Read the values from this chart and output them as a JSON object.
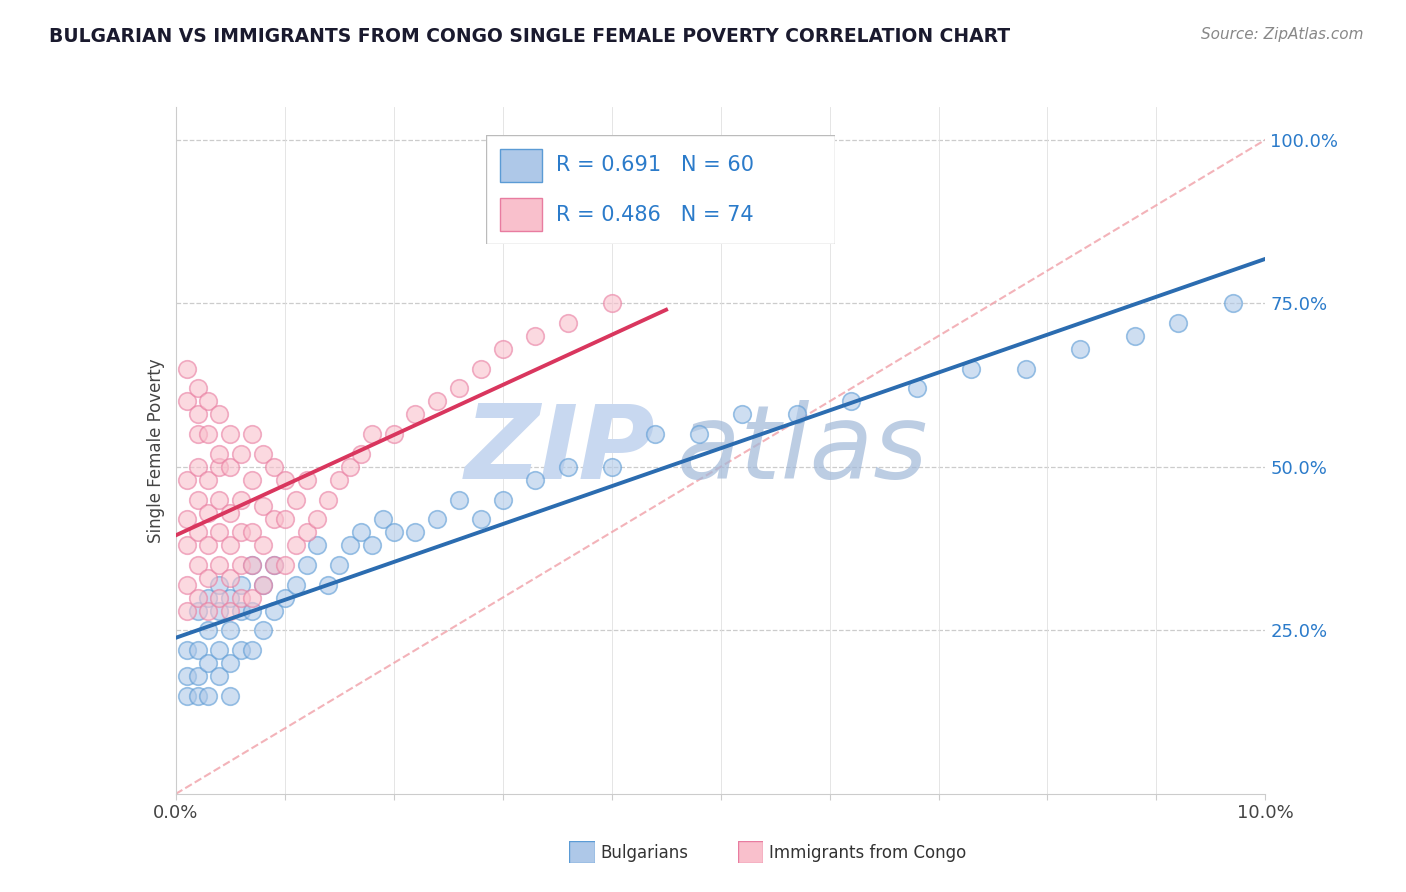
{
  "title": "BULGARIAN VS IMMIGRANTS FROM CONGO SINGLE FEMALE POVERTY CORRELATION CHART",
  "source": "Source: ZipAtlas.com",
  "ylabel": "Single Female Poverty",
  "xlim": [
    0.0,
    0.1
  ],
  "ylim": [
    0.0,
    1.05
  ],
  "yticks_right": [
    0.25,
    0.5,
    0.75,
    1.0
  ],
  "ytick_right_labels": [
    "25.0%",
    "50.0%",
    "75.0%",
    "100.0%"
  ],
  "blue_scatter_color": "#aec8e8",
  "blue_edge_color": "#5b9bd5",
  "pink_scatter_color": "#f9c0cc",
  "pink_edge_color": "#e87ca0",
  "blue_line_color": "#2b6cb0",
  "pink_line_color": "#d9365e",
  "diag_line_color": "#f0a0a8",
  "legend_R1": "R = 0.691",
  "legend_N1": "N = 60",
  "legend_R2": "R = 0.486",
  "legend_N2": "N = 74",
  "legend_label1": "Bulgarians",
  "legend_label2": "Immigrants from Congo",
  "blue_label_color": "#2b7bca",
  "pink_label_color": "#e87ca0",
  "watermark_zip_color": "#c8d8f0",
  "watermark_atlas_color": "#a0b8d8",
  "blue_x": [
    0.001,
    0.001,
    0.001,
    0.002,
    0.002,
    0.002,
    0.002,
    0.003,
    0.003,
    0.003,
    0.003,
    0.004,
    0.004,
    0.004,
    0.004,
    0.005,
    0.005,
    0.005,
    0.005,
    0.006,
    0.006,
    0.006,
    0.007,
    0.007,
    0.007,
    0.008,
    0.008,
    0.009,
    0.009,
    0.01,
    0.011,
    0.012,
    0.013,
    0.014,
    0.015,
    0.016,
    0.017,
    0.018,
    0.019,
    0.02,
    0.022,
    0.024,
    0.026,
    0.028,
    0.03,
    0.033,
    0.036,
    0.04,
    0.044,
    0.048,
    0.052,
    0.057,
    0.062,
    0.068,
    0.073,
    0.078,
    0.083,
    0.088,
    0.092,
    0.097
  ],
  "blue_y": [
    0.22,
    0.18,
    0.15,
    0.28,
    0.22,
    0.18,
    0.15,
    0.3,
    0.25,
    0.2,
    0.15,
    0.32,
    0.28,
    0.22,
    0.18,
    0.3,
    0.25,
    0.2,
    0.15,
    0.32,
    0.28,
    0.22,
    0.35,
    0.28,
    0.22,
    0.32,
    0.25,
    0.35,
    0.28,
    0.3,
    0.32,
    0.35,
    0.38,
    0.32,
    0.35,
    0.38,
    0.4,
    0.38,
    0.42,
    0.4,
    0.4,
    0.42,
    0.45,
    0.42,
    0.45,
    0.48,
    0.5,
    0.5,
    0.55,
    0.55,
    0.58,
    0.58,
    0.6,
    0.62,
    0.65,
    0.65,
    0.68,
    0.7,
    0.72,
    0.75
  ],
  "pink_x": [
    0.001,
    0.001,
    0.001,
    0.001,
    0.001,
    0.002,
    0.002,
    0.002,
    0.002,
    0.002,
    0.002,
    0.003,
    0.003,
    0.003,
    0.003,
    0.003,
    0.004,
    0.004,
    0.004,
    0.004,
    0.004,
    0.005,
    0.005,
    0.005,
    0.005,
    0.006,
    0.006,
    0.006,
    0.006,
    0.007,
    0.007,
    0.007,
    0.008,
    0.008,
    0.008,
    0.009,
    0.009,
    0.01,
    0.01,
    0.011,
    0.011,
    0.012,
    0.012,
    0.013,
    0.014,
    0.015,
    0.016,
    0.017,
    0.018,
    0.02,
    0.022,
    0.024,
    0.026,
    0.028,
    0.03,
    0.033,
    0.036,
    0.04,
    0.001,
    0.001,
    0.002,
    0.002,
    0.003,
    0.003,
    0.004,
    0.004,
    0.005,
    0.005,
    0.006,
    0.007,
    0.007,
    0.008,
    0.009,
    0.01
  ],
  "pink_y": [
    0.28,
    0.32,
    0.38,
    0.42,
    0.48,
    0.3,
    0.35,
    0.4,
    0.45,
    0.5,
    0.55,
    0.28,
    0.33,
    0.38,
    0.43,
    0.48,
    0.3,
    0.35,
    0.4,
    0.45,
    0.5,
    0.28,
    0.33,
    0.38,
    0.43,
    0.3,
    0.35,
    0.4,
    0.45,
    0.3,
    0.35,
    0.4,
    0.32,
    0.38,
    0.44,
    0.35,
    0.42,
    0.35,
    0.42,
    0.38,
    0.45,
    0.4,
    0.48,
    0.42,
    0.45,
    0.48,
    0.5,
    0.52,
    0.55,
    0.55,
    0.58,
    0.6,
    0.62,
    0.65,
    0.68,
    0.7,
    0.72,
    0.75,
    0.6,
    0.65,
    0.58,
    0.62,
    0.55,
    0.6,
    0.52,
    0.58,
    0.5,
    0.55,
    0.52,
    0.48,
    0.55,
    0.52,
    0.5,
    0.48
  ]
}
